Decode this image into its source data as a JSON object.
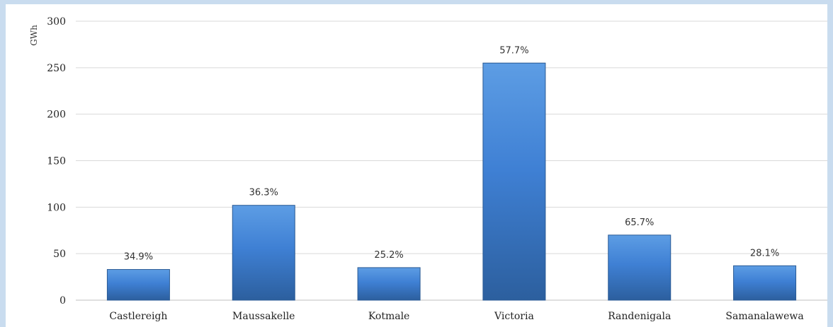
{
  "chart_data": {
    "type": "bar",
    "title": "",
    "xlabel": "",
    "ylabel": "GWh",
    "ylim": [
      0,
      300
    ],
    "yticks": [
      0,
      50,
      100,
      150,
      200,
      250,
      300
    ],
    "grid": true,
    "legend": "none",
    "categories": [
      "Castlereigh",
      "Maussakelle",
      "Kotmale",
      "Victoria",
      "Randenigala",
      "Samanalawewa"
    ],
    "values": [
      33,
      102,
      35,
      255,
      70,
      37
    ],
    "data_labels": [
      "34.9%",
      "36.3%",
      "25.2%",
      "57.7%",
      "65.7%",
      "28.1%"
    ],
    "colors": {
      "bar_top": "#5d9de4",
      "bar_mid": "#3f80d4",
      "bar_bottom": "#2c5f9e",
      "bar_edge": "#2a5a94",
      "grid": "#d9d9d9",
      "axis": "#bfbfbf"
    }
  }
}
